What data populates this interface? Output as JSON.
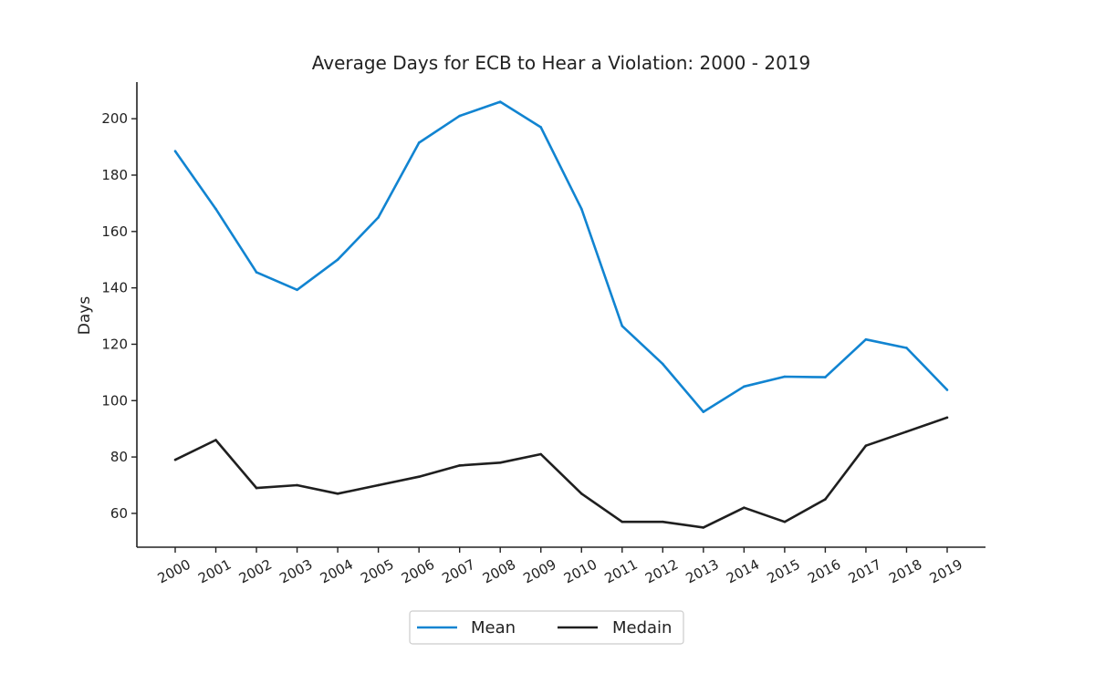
{
  "chart_data": {
    "type": "line",
    "title": "Average Days for ECB to Hear a Violation: 2000 - 2019",
    "xlabel": "",
    "ylabel": "Days",
    "categories": [
      "2000",
      "2001",
      "2002",
      "2003",
      "2004",
      "2005",
      "2006",
      "2007",
      "2008",
      "2009",
      "2010",
      "2011",
      "2012",
      "2013",
      "2014",
      "2015",
      "2016",
      "2017",
      "2018",
      "2019"
    ],
    "yticks": [
      60,
      80,
      100,
      120,
      140,
      160,
      180,
      200
    ],
    "ylim": [
      48,
      213
    ],
    "grid": false,
    "legend_position": "bottom-center",
    "series": [
      {
        "name": "Mean",
        "color": "#1184d1",
        "values": [
          188.5,
          168,
          145.5,
          139.3,
          150,
          165,
          191.5,
          201,
          206,
          197,
          168,
          126.5,
          113,
          96,
          105,
          108.5,
          108.3,
          121.7,
          118.7,
          103.8
        ]
      },
      {
        "name": "Medain",
        "color": "#1f1f1f",
        "values": [
          79,
          86,
          69,
          70,
          67,
          70,
          73,
          77,
          78,
          81,
          67,
          57,
          57,
          55,
          62,
          57,
          65,
          84,
          89,
          94
        ]
      }
    ]
  }
}
